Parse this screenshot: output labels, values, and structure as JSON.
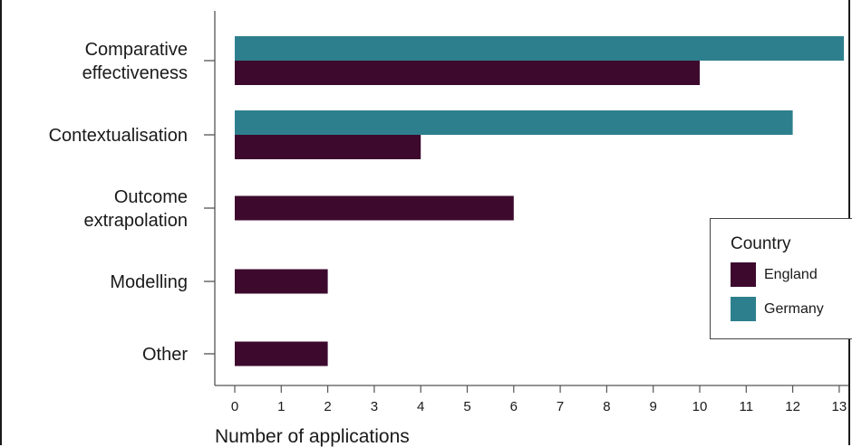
{
  "chart_data": {
    "type": "bar",
    "orientation": "horizontal",
    "categories": [
      "Comparative\neffectiveness",
      "Contextualisation",
      "Outcome\nextrapolation",
      "Modelling",
      "Other"
    ],
    "series": [
      {
        "name": "Germany",
        "color": "#2e7f8d",
        "values": [
          13.1,
          12,
          0,
          0,
          0
        ]
      },
      {
        "name": "England",
        "color": "#3d0a2e",
        "values": [
          10,
          4,
          6,
          2,
          2
        ]
      }
    ],
    "xlabel": "Number of applications",
    "ylabel": "",
    "xlim": [
      0,
      13.2
    ],
    "xticks": [
      "0",
      "1",
      "2",
      "3",
      "4",
      "5",
      "6",
      "7",
      "8",
      "9",
      "10",
      "11",
      "12",
      "13"
    ],
    "grid": false,
    "legend": {
      "title": "Country",
      "placement": "right",
      "items": [
        {
          "label": "England",
          "color": "#3d0a2e"
        },
        {
          "label": "Germany",
          "color": "#2e7f8d"
        }
      ]
    }
  }
}
